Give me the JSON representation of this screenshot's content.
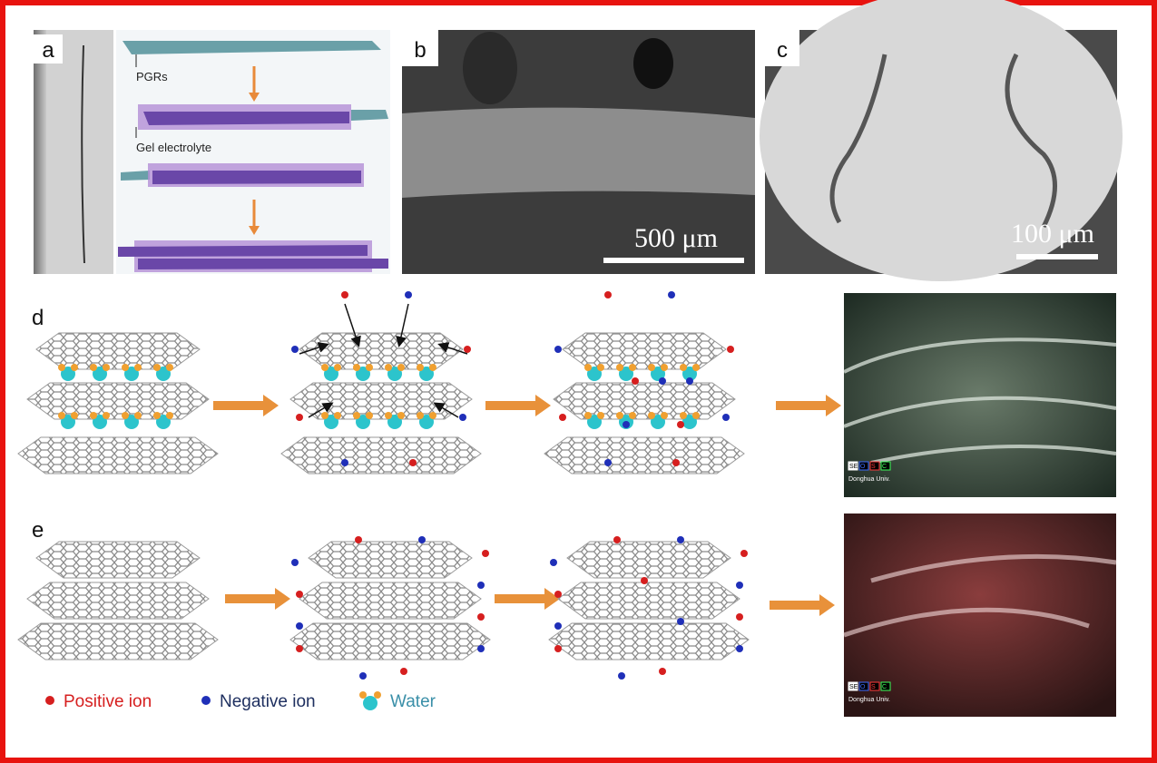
{
  "panels": {
    "a": {
      "label": "a",
      "annotations": [
        "PGRs",
        "Gel electrolyte"
      ]
    },
    "b": {
      "label": "b",
      "scale_bar": "500 μm"
    },
    "c": {
      "label": "c",
      "scale_bar": "100 μm"
    },
    "d": {
      "label": "d",
      "eds_labels": [
        "SE",
        "O",
        "S",
        "C"
      ],
      "caption": "Donghua Univ."
    },
    "e": {
      "label": "e",
      "eds_labels": [
        "SE",
        "O",
        "S",
        "C"
      ],
      "caption": "Donghua Univ."
    }
  },
  "legend": [
    "Positive ion",
    "Negative ion",
    "Water"
  ]
}
